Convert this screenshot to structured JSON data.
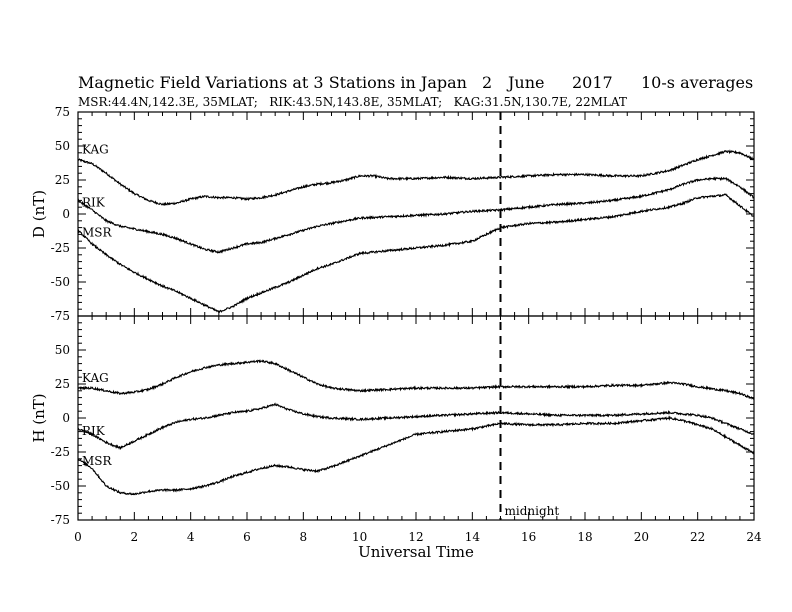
{
  "header": {
    "title": "Magnetic Field Variations at 3 Stations in Japan",
    "day": "2",
    "month": "June",
    "year": "2017",
    "averaging": "10-s averages",
    "stations": "MSR:44.4N,142.3E, 35MLAT;   RIK:43.5N,143.8E, 35MLAT;   KAG:31.5N,130.7E, 22MLAT"
  },
  "chart_data": {
    "type": "line",
    "xlabel": "Universal Time",
    "xlim": [
      0,
      24
    ],
    "xticks": [
      "0",
      "2",
      "4",
      "6",
      "8",
      "10",
      "12",
      "14",
      "16",
      "18",
      "20",
      "22",
      "24"
    ],
    "x_minor_step": 0.5,
    "marker": {
      "x": 15,
      "label": "midnight",
      "style": "dashed"
    },
    "panels": [
      {
        "ylabel": "D (nT)",
        "ylim": [
          -75,
          75
        ],
        "yticks": [
          "75",
          "50",
          "25",
          "0",
          "-25",
          "-50",
          "-75"
        ],
        "series": [
          {
            "name": "KAG",
            "points": [
              [
                0,
                40
              ],
              [
                0.5,
                37
              ],
              [
                1,
                30
              ],
              [
                1.5,
                22
              ],
              [
                2,
                15
              ],
              [
                2.5,
                10
              ],
              [
                3,
                7
              ],
              [
                3.5,
                8
              ],
              [
                4,
                11
              ],
              [
                4.5,
                13
              ],
              [
                5,
                12
              ],
              [
                5.5,
                12
              ],
              [
                6,
                11
              ],
              [
                6.5,
                12
              ],
              [
                7,
                14
              ],
              [
                7.5,
                17
              ],
              [
                8,
                20
              ],
              [
                8.5,
                22
              ],
              [
                9,
                23
              ],
              [
                9.5,
                25
              ],
              [
                10,
                28
              ],
              [
                10.5,
                28
              ],
              [
                11,
                26
              ],
              [
                12,
                26
              ],
              [
                13,
                27
              ],
              [
                14,
                26
              ],
              [
                15,
                27
              ],
              [
                16,
                28
              ],
              [
                17,
                29
              ],
              [
                18,
                29
              ],
              [
                19,
                28
              ],
              [
                20,
                28
              ],
              [
                20.5,
                30
              ],
              [
                21,
                32
              ],
              [
                21.5,
                36
              ],
              [
                22,
                40
              ],
              [
                22.5,
                43
              ],
              [
                23,
                46
              ],
              [
                23.5,
                45
              ],
              [
                24,
                40
              ]
            ]
          },
          {
            "name": "RIK",
            "points": [
              [
                0,
                10
              ],
              [
                0.5,
                3
              ],
              [
                1,
                -5
              ],
              [
                1.5,
                -9
              ],
              [
                2,
                -11
              ],
              [
                2.5,
                -13
              ],
              [
                3,
                -15
              ],
              [
                3.5,
                -18
              ],
              [
                4,
                -22
              ],
              [
                4.5,
                -26
              ],
              [
                5,
                -28
              ],
              [
                5.5,
                -25
              ],
              [
                6,
                -22
              ],
              [
                6.5,
                -21
              ],
              [
                7,
                -18
              ],
              [
                7.5,
                -15
              ],
              [
                8,
                -12
              ],
              [
                8.5,
                -9
              ],
              [
                9,
                -7
              ],
              [
                9.5,
                -5
              ],
              [
                10,
                -3
              ],
              [
                11,
                -2
              ],
              [
                12,
                -1
              ],
              [
                13,
                0
              ],
              [
                14,
                2
              ],
              [
                15,
                3
              ],
              [
                16,
                5
              ],
              [
                17,
                7
              ],
              [
                18,
                8
              ],
              [
                19,
                10
              ],
              [
                20,
                13
              ],
              [
                21,
                18
              ],
              [
                21.5,
                22
              ],
              [
                22,
                25
              ],
              [
                22.5,
                26
              ],
              [
                23,
                26
              ],
              [
                23.5,
                20
              ],
              [
                24,
                12
              ]
            ]
          },
          {
            "name": "MSR",
            "points": [
              [
                0,
                -12
              ],
              [
                0.5,
                -22
              ],
              [
                1,
                -30
              ],
              [
                1.5,
                -37
              ],
              [
                2,
                -43
              ],
              [
                2.5,
                -48
              ],
              [
                3,
                -53
              ],
              [
                3.5,
                -57
              ],
              [
                4,
                -62
              ],
              [
                4.5,
                -67
              ],
              [
                5,
                -72
              ],
              [
                5.5,
                -68
              ],
              [
                6,
                -62
              ],
              [
                6.5,
                -58
              ],
              [
                7,
                -54
              ],
              [
                7.5,
                -50
              ],
              [
                8,
                -45
              ],
              [
                8.5,
                -40
              ],
              [
                9,
                -37
              ],
              [
                9.5,
                -33
              ],
              [
                10,
                -29
              ],
              [
                11,
                -27
              ],
              [
                12,
                -25
              ],
              [
                13,
                -23
              ],
              [
                14,
                -20
              ],
              [
                15,
                -10
              ],
              [
                16,
                -7
              ],
              [
                17,
                -6
              ],
              [
                18,
                -4
              ],
              [
                19,
                -2
              ],
              [
                20,
                2
              ],
              [
                21,
                5
              ],
              [
                21.5,
                8
              ],
              [
                22,
                12
              ],
              [
                22.5,
                13
              ],
              [
                23,
                14
              ],
              [
                23.5,
                6
              ],
              [
                24,
                -2
              ]
            ]
          }
        ]
      },
      {
        "ylabel": "H (nT)",
        "ylim": [
          -75,
          75
        ],
        "yticks": [
          "75",
          "50",
          "25",
          "0",
          "-25",
          "-50",
          "-75"
        ],
        "series": [
          {
            "name": "KAG",
            "points": [
              [
                0,
                22
              ],
              [
                0.5,
                22
              ],
              [
                1,
                20
              ],
              [
                1.5,
                18
              ],
              [
                2,
                19
              ],
              [
                2.5,
                21
              ],
              [
                3,
                25
              ],
              [
                3.5,
                30
              ],
              [
                4,
                34
              ],
              [
                4.5,
                37
              ],
              [
                5,
                39
              ],
              [
                5.5,
                40
              ],
              [
                6,
                41
              ],
              [
                6.5,
                42
              ],
              [
                7,
                40
              ],
              [
                7.5,
                35
              ],
              [
                8,
                30
              ],
              [
                8.5,
                25
              ],
              [
                9,
                22
              ],
              [
                9.5,
                21
              ],
              [
                10,
                20
              ],
              [
                11,
                21
              ],
              [
                12,
                22
              ],
              [
                13,
                22
              ],
              [
                14,
                22
              ],
              [
                15,
                23
              ],
              [
                16,
                23
              ],
              [
                17,
                23
              ],
              [
                18,
                23
              ],
              [
                19,
                24
              ],
              [
                20,
                24
              ],
              [
                21,
                26
              ],
              [
                21.5,
                25
              ],
              [
                22,
                23
              ],
              [
                23,
                20
              ],
              [
                23.5,
                18
              ],
              [
                24,
                14
              ]
            ]
          },
          {
            "name": "RIK",
            "points": [
              [
                0,
                -8
              ],
              [
                0.5,
                -12
              ],
              [
                1,
                -18
              ],
              [
                1.5,
                -22
              ],
              [
                2,
                -17
              ],
              [
                2.5,
                -12
              ],
              [
                3,
                -7
              ],
              [
                3.5,
                -3
              ],
              [
                4,
                -1
              ],
              [
                4.5,
                0
              ],
              [
                5,
                2
              ],
              [
                5.5,
                4
              ],
              [
                6,
                5
              ],
              [
                6.5,
                7
              ],
              [
                7,
                10
              ],
              [
                7.5,
                6
              ],
              [
                8,
                3
              ],
              [
                8.5,
                1
              ],
              [
                9,
                0
              ],
              [
                10,
                -1
              ],
              [
                11,
                0
              ],
              [
                12,
                1
              ],
              [
                13,
                2
              ],
              [
                14,
                3
              ],
              [
                15,
                4
              ],
              [
                16,
                3
              ],
              [
                17,
                2
              ],
              [
                18,
                2
              ],
              [
                19,
                2
              ],
              [
                20,
                3
              ],
              [
                21,
                4
              ],
              [
                21.5,
                3
              ],
              [
                22,
                2
              ],
              [
                22.5,
                0
              ],
              [
                23,
                -4
              ],
              [
                23.5,
                -8
              ],
              [
                24,
                -12
              ]
            ]
          },
          {
            "name": "MSR",
            "points": [
              [
                0,
                -30
              ],
              [
                0.5,
                -37
              ],
              [
                1,
                -50
              ],
              [
                1.5,
                -55
              ],
              [
                2,
                -56
              ],
              [
                2.5,
                -54
              ],
              [
                3,
                -53
              ],
              [
                3.5,
                -53
              ],
              [
                4,
                -52
              ],
              [
                4.5,
                -50
              ],
              [
                5,
                -47
              ],
              [
                5.5,
                -43
              ],
              [
                6,
                -40
              ],
              [
                6.5,
                -37
              ],
              [
                7,
                -35
              ],
              [
                7.5,
                -36
              ],
              [
                8,
                -38
              ],
              [
                8.5,
                -39
              ],
              [
                9,
                -36
              ],
              [
                9.5,
                -32
              ],
              [
                10,
                -28
              ],
              [
                10.5,
                -24
              ],
              [
                11,
                -20
              ],
              [
                11.5,
                -16
              ],
              [
                12,
                -12
              ],
              [
                13,
                -10
              ],
              [
                14,
                -8
              ],
              [
                15,
                -4
              ],
              [
                16,
                -5
              ],
              [
                17,
                -5
              ],
              [
                18,
                -4
              ],
              [
                19,
                -4
              ],
              [
                20,
                -2
              ],
              [
                21,
                0
              ],
              [
                21.5,
                -2
              ],
              [
                22,
                -5
              ],
              [
                22.5,
                -8
              ],
              [
                23,
                -14
              ],
              [
                23.5,
                -20
              ],
              [
                24,
                -26
              ]
            ]
          }
        ]
      }
    ]
  }
}
